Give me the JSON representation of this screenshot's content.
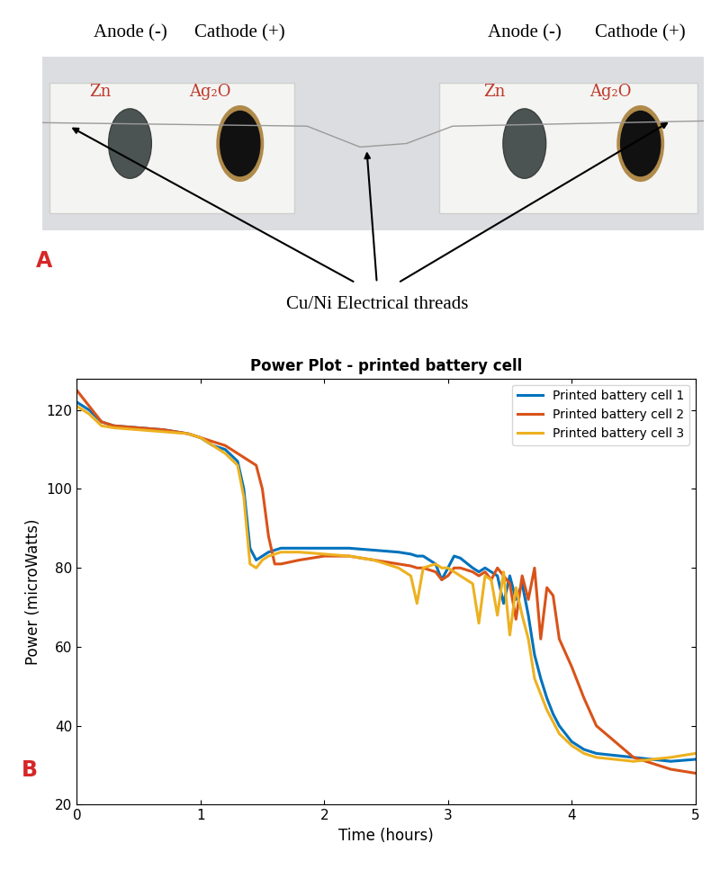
{
  "panel_labels": [
    "A",
    "B"
  ],
  "photo": {
    "cells": [
      {
        "anode_heading": "Anode (-)",
        "cathode_heading": "Cathode (+)",
        "anode": "Zn",
        "cathode": "Ag₂O"
      },
      {
        "anode_heading": "Anode (-)",
        "cathode_heading": "Cathode (+)",
        "anode": "Zn",
        "cathode": "Ag₂O"
      }
    ],
    "callout": "Cu/Ni Electrical threads"
  },
  "chart_data": {
    "type": "line",
    "title": "Power Plot - printed battery cell",
    "x_label": "Time (hours)",
    "y_label": "Power (microWatts)",
    "x": [
      0,
      0.1,
      0.2,
      0.3,
      0.5,
      0.7,
      0.9,
      1.0,
      1.1,
      1.2,
      1.3,
      1.35,
      1.4,
      1.45,
      1.5,
      1.55,
      1.6,
      1.65,
      1.8,
      2.0,
      2.2,
      2.4,
      2.6,
      2.7,
      2.75,
      2.8,
      2.9,
      2.95,
      3.0,
      3.05,
      3.1,
      3.2,
      3.25,
      3.3,
      3.35,
      3.4,
      3.45,
      3.5,
      3.55,
      3.6,
      3.65,
      3.7,
      3.75,
      3.8,
      3.85,
      3.9,
      4.0,
      4.1,
      4.2,
      4.5,
      4.8,
      5.0
    ],
    "series": [
      {
        "name": "Printed battery cell 1",
        "color": "#0072BD",
        "values": [
          122,
          120,
          117,
          116,
          115.5,
          115,
          114,
          113,
          111,
          110,
          107,
          100,
          85,
          82,
          83,
          84,
          84.5,
          85,
          85,
          85,
          85,
          84.5,
          84,
          83.5,
          83,
          83,
          81,
          77,
          80,
          83,
          82.5,
          80,
          79,
          80,
          79,
          78,
          71,
          78,
          72,
          76,
          68,
          58,
          52,
          47,
          43,
          40,
          36,
          34,
          33,
          32,
          31,
          31.5
        ]
      },
      {
        "name": "Printed battery cell 2",
        "color": "#D95319",
        "values": [
          125,
          121,
          117,
          116,
          115.5,
          115,
          114,
          113,
          112,
          111,
          109,
          108,
          107,
          106,
          100,
          88,
          81,
          81,
          82,
          83,
          83,
          82,
          81,
          80.5,
          80,
          80,
          79,
          77,
          78,
          80,
          80,
          79,
          78,
          79,
          77,
          80,
          78,
          76,
          67,
          78,
          72,
          80,
          62,
          75,
          73,
          62,
          55,
          47,
          40,
          32,
          29,
          28
        ]
      },
      {
        "name": "Printed battery cell 3",
        "color": "#EDB120",
        "values": [
          121,
          119,
          116,
          115.5,
          115,
          114.5,
          114,
          113,
          111,
          109,
          106,
          98,
          81,
          80,
          82,
          83,
          83.5,
          84,
          84,
          83.5,
          83,
          82,
          80,
          78,
          71,
          80,
          81,
          80,
          80,
          79,
          78,
          76,
          66,
          78,
          77,
          68,
          79,
          63,
          75,
          68,
          62,
          52,
          48,
          44,
          41,
          38,
          35,
          33,
          32,
          31,
          32,
          33
        ]
      }
    ],
    "xlim": [
      0,
      5
    ],
    "xticks": [
      0,
      1,
      2,
      3,
      4,
      5
    ],
    "ylim": [
      20,
      128
    ],
    "yticks": [
      20,
      40,
      60,
      80,
      100,
      120
    ],
    "grid": false,
    "legend": "upper right"
  }
}
